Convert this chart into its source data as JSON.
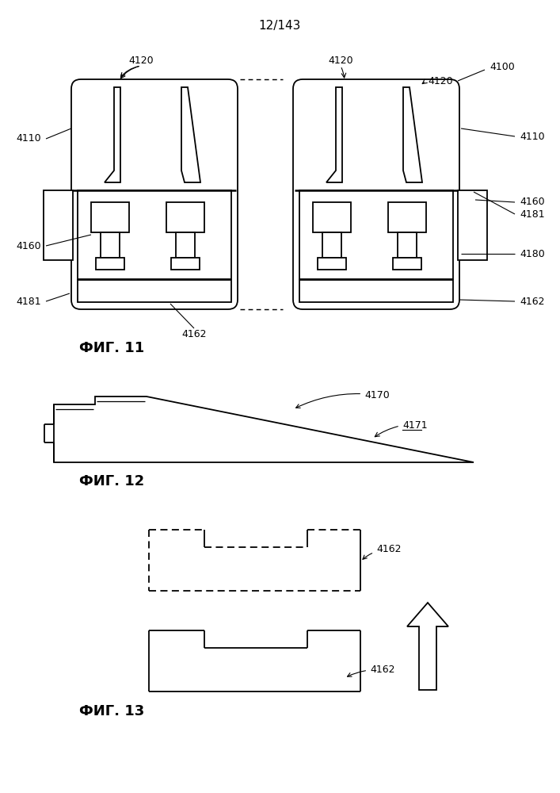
{
  "page_label": "12/143",
  "fig11_label": "ФИГ. 11",
  "fig12_label": "ФИГ. 12",
  "fig13_label": "ФИГ. 13",
  "line_color": "#000000",
  "bg_color": "#ffffff",
  "lw": 1.3
}
